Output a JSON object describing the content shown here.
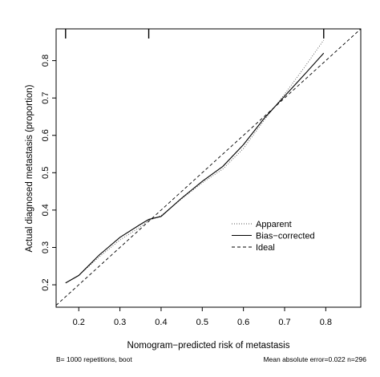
{
  "chart_data": {
    "type": "line",
    "xlabel": "Nomogram−predicted risk of metastasis",
    "ylabel": "Actual diagnosed metastasis (proportion)",
    "xlim": [
      0.145,
      0.885
    ],
    "ylim": [
      0.14,
      0.885
    ],
    "x_ticks": [
      0.2,
      0.3,
      0.4,
      0.5,
      0.6,
      0.7,
      0.8
    ],
    "x_tick_labels": [
      "0.2",
      "0.3",
      "0.4",
      "0.5",
      "0.6",
      "0.7",
      "0.8"
    ],
    "y_ticks": [
      0.2,
      0.3,
      0.4,
      0.5,
      0.6,
      0.7,
      0.8
    ],
    "y_tick_labels": [
      "0.2",
      "0.3",
      "0.4",
      "0.5",
      "0.6",
      "0.7",
      "0.8"
    ],
    "rug_x": [
      0.168,
      0.37,
      0.795
    ],
    "legend_position": "bottom-right",
    "series": [
      {
        "name": "Apparent",
        "style": "dotted",
        "x": [
          0.168,
          0.2,
          0.25,
          0.3,
          0.35,
          0.37,
          0.4,
          0.45,
          0.5,
          0.55,
          0.6,
          0.65,
          0.7,
          0.75,
          0.795
        ],
        "y": [
          0.205,
          0.225,
          0.275,
          0.32,
          0.355,
          0.372,
          0.385,
          0.43,
          0.473,
          0.51,
          0.565,
          0.64,
          0.71,
          0.785,
          0.855
        ]
      },
      {
        "name": "Bias−corrected",
        "style": "solid",
        "x": [
          0.168,
          0.2,
          0.25,
          0.3,
          0.35,
          0.37,
          0.4,
          0.45,
          0.5,
          0.55,
          0.6,
          0.65,
          0.7,
          0.75,
          0.795
        ],
        "y": [
          0.205,
          0.225,
          0.28,
          0.327,
          0.362,
          0.375,
          0.383,
          0.432,
          0.477,
          0.517,
          0.575,
          0.645,
          0.705,
          0.765,
          0.82
        ]
      },
      {
        "name": "Ideal",
        "style": "dashed",
        "x": [
          0.145,
          0.885
        ],
        "y": [
          0.145,
          0.885
        ]
      }
    ]
  },
  "footer": {
    "left": "B= 1000 repetitions, boot",
    "right": "Mean absolute error=0.022 n=296"
  }
}
